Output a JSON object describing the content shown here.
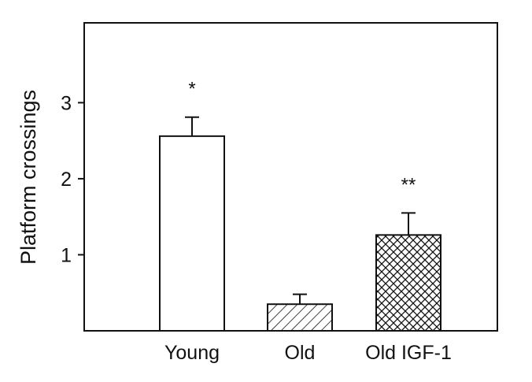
{
  "chart_data": {
    "type": "bar",
    "title": "",
    "xlabel": "",
    "ylabel": "Platform crossings",
    "categories": [
      "Young",
      "Old",
      "Old IGF-1"
    ],
    "values": [
      2.56,
      0.35,
      1.26
    ],
    "error_upper": [
      0.25,
      0.13,
      0.29
    ],
    "significance": [
      "*",
      "",
      "**"
    ],
    "patterns": [
      "none",
      "diagonal-hatch",
      "crosshatch"
    ],
    "ylim": [
      0,
      4.05
    ],
    "yticks": [
      1,
      2,
      3
    ],
    "grid": false,
    "legend": "none",
    "colors": {
      "bar_fill": "#ffffff",
      "stroke": "#111111"
    }
  }
}
